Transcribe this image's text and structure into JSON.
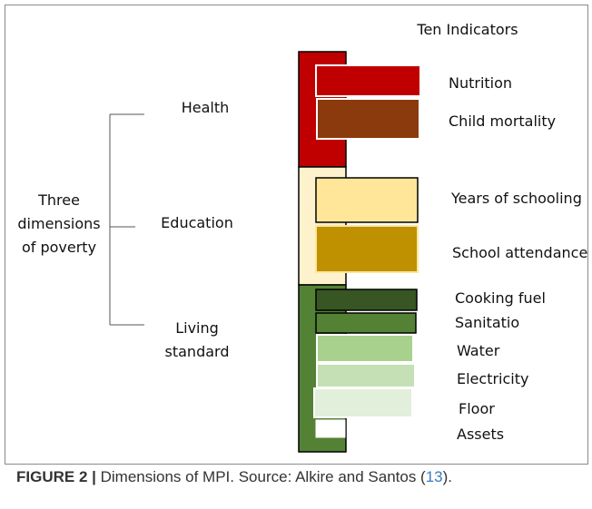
{
  "header": {
    "title": "Ten Indicators"
  },
  "root_label": {
    "line1": "Three",
    "line2": "dimensions",
    "line3": "of poverty"
  },
  "dimensions": [
    {
      "id": "health",
      "label_lines": [
        "Health"
      ],
      "color": "#c00000"
    },
    {
      "id": "education",
      "label_lines": [
        "Education"
      ],
      "color": "#fdf2cc"
    },
    {
      "id": "living",
      "label_lines": [
        "Living",
        "standard"
      ],
      "color": "#548235"
    }
  ],
  "indicators": [
    {
      "label": "Nutrition",
      "color": "#c00000",
      "border": "#ffffff"
    },
    {
      "label": "Child mortality",
      "color": "#8b3a0e",
      "border": "#ffffff"
    },
    {
      "label": "Years of schooling",
      "color": "#ffe699",
      "border": "#000000"
    },
    {
      "label": "School attendance",
      "color": "#bf9000",
      "border": "#ffe699"
    },
    {
      "label": "Cooking fuel",
      "color": "#375623",
      "border": "#000000"
    },
    {
      "label": "Sanitatio",
      "color": "#548235",
      "border": "#000000"
    },
    {
      "label": "Water",
      "color": "#a9d18e",
      "border": "#ffffff"
    },
    {
      "label": "Electricity",
      "color": "#c5e0b4",
      "border": "#ffffff"
    },
    {
      "label": "Floor",
      "color": "#e2efda",
      "border": "#ffffff"
    },
    {
      "label": "Assets",
      "color": "#ffffff",
      "border": "#ffffff"
    }
  ],
  "caption": {
    "label": "FIGURE 2 |",
    "text": " Dimensions of MPI. Source: Alkire and Santos (",
    "ref": "13",
    "end": ")."
  }
}
